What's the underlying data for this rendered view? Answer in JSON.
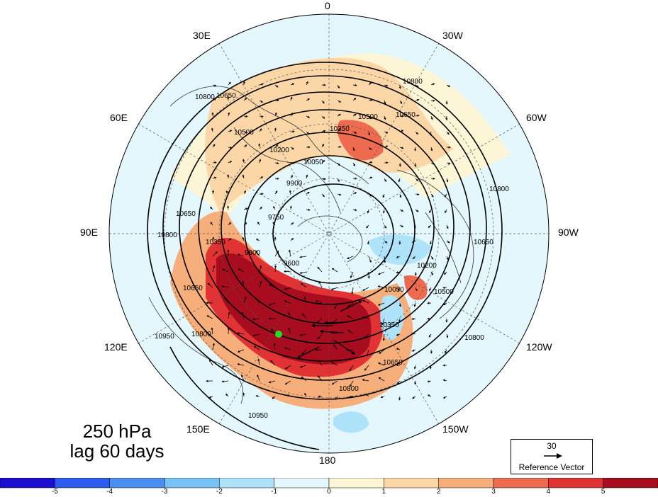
{
  "title": {
    "line1": "250 hPa",
    "line2": "lag 60 days"
  },
  "longitude_labels": [
    {
      "text": "0"
    },
    {
      "text": "30E"
    },
    {
      "text": "30W"
    },
    {
      "text": "60E"
    },
    {
      "text": "60W"
    },
    {
      "text": "90E"
    },
    {
      "text": "90W"
    },
    {
      "text": "120E"
    },
    {
      "text": "120W"
    },
    {
      "text": "150E"
    },
    {
      "text": "150W"
    },
    {
      "text": "180"
    }
  ],
  "contour_labels": [
    "10800",
    "10650",
    "10500",
    "10350",
    "10200",
    "10050",
    "9900",
    "9750",
    "9600",
    "10950"
  ],
  "reference_vector": {
    "value": "30",
    "label": "Reference Vector"
  },
  "colorbar": {
    "ticks": [
      "-5",
      "-4",
      "-3",
      "-2",
      "-1",
      "0",
      "1",
      "2",
      "3",
      "4",
      "5"
    ],
    "colors": [
      "#1a0fd0",
      "#2e5cf0",
      "#4a8ef0",
      "#77c1f5",
      "#aee3fa",
      "#e3f7fc",
      "#fdf6d6",
      "#fbd7a8",
      "#f6ae7a",
      "#ee6b50",
      "#e23334",
      "#a80d1f"
    ]
  },
  "marker": {
    "color": "#22dd22"
  }
}
